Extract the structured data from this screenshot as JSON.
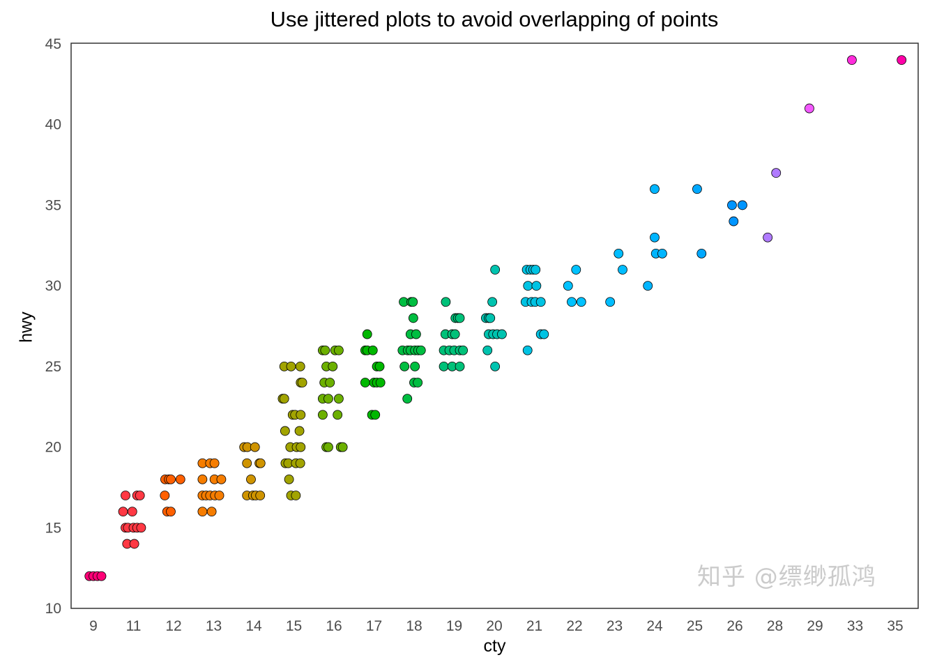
{
  "chart_data": {
    "type": "scatter",
    "title": "Use jittered plots to avoid overlapping of points",
    "xlabel": "cty",
    "ylabel": "hwy",
    "x_type": "categorical",
    "categories": [
      "9",
      "11",
      "12",
      "13",
      "14",
      "15",
      "16",
      "17",
      "18",
      "19",
      "20",
      "21",
      "22",
      "23",
      "24",
      "25",
      "26",
      "28",
      "29",
      "33",
      "35"
    ],
    "ylim": [
      10,
      45
    ],
    "yticks": [
      10,
      15,
      20,
      25,
      30,
      35,
      40,
      45
    ],
    "grid": false,
    "color_by": "cty (hue palette)",
    "points_note": "each entry: [cty, hwy, jitter offsets in category-width units]",
    "points": [
      [
        9,
        12,
        [
          -0.1,
          0,
          0.1,
          0.2
        ]
      ],
      [
        11,
        17,
        [
          -0.2,
          0.09,
          0.16
        ]
      ],
      [
        11,
        16,
        [
          -0.26,
          -0.03
        ]
      ],
      [
        11,
        15,
        [
          -0.2,
          -0.14,
          0,
          0.09,
          0.19
        ]
      ],
      [
        11,
        14,
        [
          -0.16,
          0.02
        ]
      ],
      [
        12,
        18,
        [
          -0.21,
          -0.12,
          -0.07,
          0.17
        ]
      ],
      [
        12,
        17,
        [
          -0.22
        ]
      ],
      [
        12,
        16,
        [
          -0.16,
          -0.07
        ]
      ],
      [
        13,
        19,
        [
          -0.28,
          -0.09,
          0.02
        ]
      ],
      [
        13,
        18,
        [
          -0.28,
          0.02,
          0.19
        ]
      ],
      [
        13,
        17,
        [
          -0.28,
          -0.19,
          -0.09,
          0.03,
          0.14
        ]
      ],
      [
        13,
        16,
        [
          -0.28,
          -0.05
        ]
      ],
      [
        14,
        20,
        [
          -0.24,
          -0.16,
          0.03
        ]
      ],
      [
        14,
        19,
        [
          -0.17,
          0.14,
          0.17
        ]
      ],
      [
        14,
        18,
        [
          -0.07
        ]
      ],
      [
        14,
        17,
        [
          -0.17,
          -0.02,
          0.05,
          0.16
        ]
      ],
      [
        15,
        25,
        [
          -0.24,
          -0.07,
          0.16
        ]
      ],
      [
        15,
        24,
        [
          0.17,
          0.21
        ]
      ],
      [
        15,
        23,
        [
          -0.28,
          -0.24
        ]
      ],
      [
        15,
        22,
        [
          -0.03,
          0.03,
          0.17
        ]
      ],
      [
        15,
        21,
        [
          -0.22,
          0.14
        ]
      ],
      [
        15,
        20,
        [
          -0.09,
          0.07,
          0.17
        ]
      ],
      [
        15,
        19,
        [
          -0.21,
          -0.14,
          0.05,
          0.16
        ]
      ],
      [
        15,
        18,
        [
          -0.12
        ]
      ],
      [
        15,
        17,
        [
          -0.07,
          0.05
        ]
      ],
      [
        16,
        26,
        [
          -0.28,
          -0.22,
          0.03,
          0.12
        ]
      ],
      [
        16,
        25,
        [
          -0.19,
          -0.03
        ]
      ],
      [
        16,
        24,
        [
          -0.24,
          -0.1
        ]
      ],
      [
        16,
        23,
        [
          -0.28,
          -0.14,
          0.12
        ]
      ],
      [
        16,
        22,
        [
          -0.28,
          0.09
        ]
      ],
      [
        16,
        20,
        [
          -0.19,
          -0.14,
          0.17,
          0.22
        ]
      ],
      [
        17,
        27,
        [
          -0.17
        ]
      ],
      [
        17,
        26,
        [
          -0.22,
          -0.17,
          -0.03
        ]
      ],
      [
        17,
        25,
        [
          0.07,
          0.14
        ]
      ],
      [
        17,
        24,
        [
          -0.22,
          0,
          0.07,
          0.16
        ]
      ],
      [
        17,
        22,
        [
          -0.05,
          0.03
        ]
      ],
      [
        18,
        29,
        [
          -0.26,
          -0.07,
          -0.03
        ]
      ],
      [
        18,
        28,
        [
          -0.02
        ]
      ],
      [
        18,
        27,
        [
          -0.09,
          0.05
        ]
      ],
      [
        18,
        26,
        [
          -0.29,
          -0.16,
          -0.09,
          0.02,
          0.1,
          0.17
        ]
      ],
      [
        18,
        25,
        [
          -0.24,
          0.02
        ]
      ],
      [
        18,
        24,
        [
          0,
          0.09
        ]
      ],
      [
        18,
        23,
        [
          -0.17
        ]
      ],
      [
        19,
        29,
        [
          -0.21
        ]
      ],
      [
        19,
        28,
        [
          0.03,
          0.09,
          0.14
        ]
      ],
      [
        19,
        27,
        [
          -0.22,
          -0.05,
          0.02
        ]
      ],
      [
        19,
        26,
        [
          -0.26,
          -0.12,
          0,
          0.14,
          0.22
        ]
      ],
      [
        19,
        25,
        [
          -0.26,
          -0.05,
          0.14
        ]
      ],
      [
        20,
        31,
        [
          0.02
        ]
      ],
      [
        20,
        29,
        [
          -0.05
        ]
      ],
      [
        20,
        28,
        [
          -0.21,
          -0.14,
          -0.1
        ]
      ],
      [
        20,
        27,
        [
          -0.14,
          -0.03,
          0.07,
          0.19
        ]
      ],
      [
        20,
        26,
        [
          -0.17
        ]
      ],
      [
        20,
        25,
        [
          0.02
        ]
      ],
      [
        21,
        31,
        [
          -0.19,
          -0.1,
          -0.03,
          0.03
        ]
      ],
      [
        21,
        30,
        [
          -0.16,
          0.05
        ]
      ],
      [
        21,
        29,
        [
          -0.22,
          -0.07,
          0.02,
          0.16
        ]
      ],
      [
        21,
        27,
        [
          0.16,
          0.24
        ]
      ],
      [
        21,
        26,
        [
          -0.17
        ]
      ],
      [
        22,
        31,
        [
          0.04
        ]
      ],
      [
        22,
        30,
        [
          -0.16
        ]
      ],
      [
        22,
        29,
        [
          -0.07,
          0.17
        ]
      ],
      [
        23,
        32,
        [
          0.1
        ]
      ],
      [
        23,
        31,
        [
          0.2
        ]
      ],
      [
        23,
        29,
        [
          -0.11
        ]
      ],
      [
        24,
        36,
        [
          0
        ]
      ],
      [
        24,
        33,
        [
          0
        ]
      ],
      [
        24,
        32,
        [
          0.03,
          0.19
        ]
      ],
      [
        24,
        30,
        [
          -0.17
        ]
      ],
      [
        25,
        36,
        [
          0.06
        ]
      ],
      [
        25,
        32,
        [
          0.17
        ]
      ],
      [
        26,
        35,
        [
          -0.07,
          0.19
        ]
      ],
      [
        26,
        34,
        [
          -0.03
        ]
      ],
      [
        28,
        37,
        [
          0.03
        ]
      ],
      [
        28,
        33,
        [
          -0.18
        ]
      ],
      [
        29,
        41,
        [
          -0.14
        ]
      ],
      [
        33,
        44,
        [
          -0.08
        ]
      ],
      [
        35,
        44,
        [
          0.16
        ]
      ]
    ]
  },
  "watermark": "知乎 @缥缈孤鸿"
}
